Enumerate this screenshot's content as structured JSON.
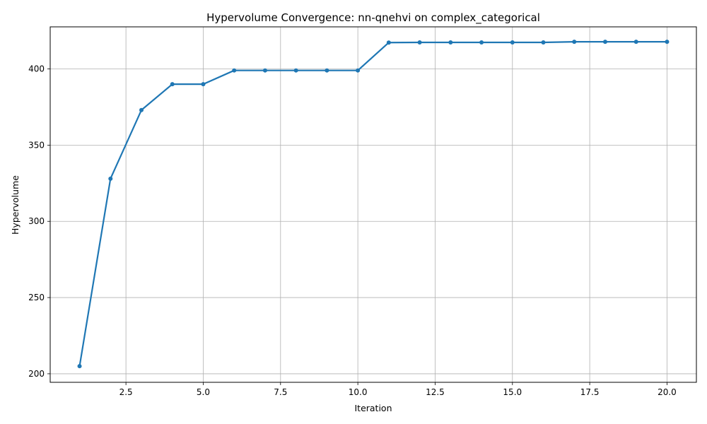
{
  "chart_data": {
    "type": "line",
    "title": "Hypervolume Convergence: nn-qnehvi on complex_categorical",
    "xlabel": "Iteration",
    "ylabel": "Hypervolume",
    "xlim": [
      0.05,
      20.95
    ],
    "ylim": [
      194.4,
      427.6
    ],
    "grid": true,
    "x_ticks": [
      2.5,
      5.0,
      7.5,
      10.0,
      12.5,
      15.0,
      17.5,
      20.0
    ],
    "x_tick_labels": [
      "2.5",
      "5.0",
      "7.5",
      "10.0",
      "12.5",
      "15.0",
      "17.5",
      "20.0"
    ],
    "y_ticks": [
      200,
      250,
      300,
      350,
      400
    ],
    "y_tick_labels": [
      "200",
      "250",
      "300",
      "350",
      "400"
    ],
    "series": [
      {
        "color": "#1f77b4",
        "x": [
          1,
          2,
          3,
          4,
          5,
          6,
          7,
          8,
          9,
          10,
          11,
          12,
          13,
          14,
          15,
          16,
          17,
          18,
          19,
          20
        ],
        "y": [
          205,
          328,
          373,
          390,
          390,
          399,
          399,
          399,
          399,
          399,
          417.3,
          417.4,
          417.4,
          417.4,
          417.4,
          417.4,
          417.8,
          417.8,
          417.8,
          417.8
        ]
      }
    ]
  }
}
